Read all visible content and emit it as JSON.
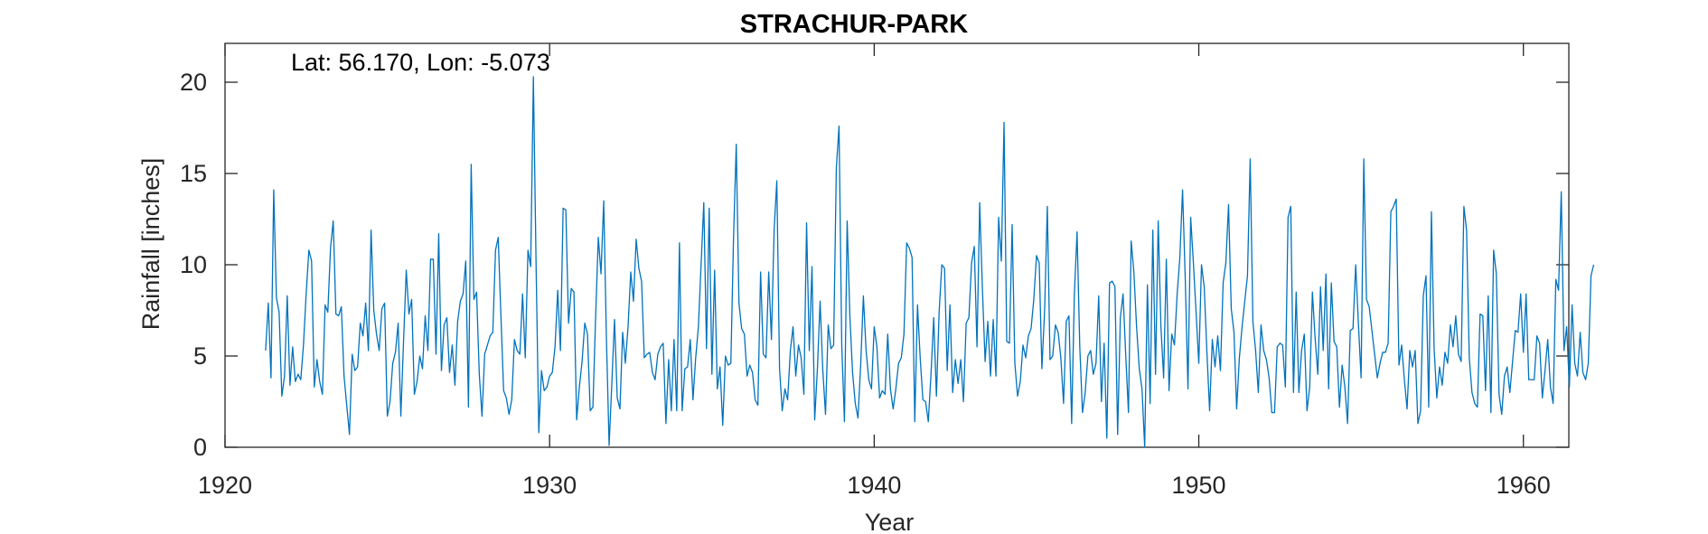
{
  "chart_data": {
    "type": "line",
    "title": "STRACHUR-PARK",
    "annotation": "Lat: 56.170, Lon: -5.073",
    "xlabel": "Year",
    "ylabel": "Rainfall [inches]",
    "xlim": [
      1920,
      1961.4
    ],
    "ylim": [
      0,
      22.5
    ],
    "xticks": [
      1920,
      1930,
      1940,
      1950,
      1960
    ],
    "yticks": [
      0,
      5,
      10,
      15,
      20
    ],
    "grid": false,
    "line_color": "#0072BD",
    "series": [
      {
        "start_year": 1921.25,
        "step": 0.0833333,
        "values": [
          5.3,
          7.9,
          3.8,
          14.1,
          8.2,
          7.4,
          2.8,
          3.9,
          8.3,
          3.4,
          5.5,
          3.6,
          4.0,
          3.7,
          5.6,
          8.4,
          10.8,
          10.2,
          3.3,
          4.8,
          3.6,
          2.9,
          7.8,
          7.4,
          10.9,
          12.4,
          7.3,
          7.2,
          7.7,
          3.9,
          2.3,
          0.7,
          5.1,
          4.2,
          4.4,
          6.8,
          6.1,
          7.9,
          5.3,
          11.9,
          7.5,
          6.2,
          5.3,
          7.6,
          7.9,
          1.7,
          2.5,
          4.6,
          5.2,
          6.8,
          1.7,
          5.8,
          9.7,
          7.3,
          8.1,
          2.9,
          3.6,
          5.0,
          4.3,
          7.2,
          5.3,
          10.3,
          10.3,
          5.1,
          11.7,
          4.2,
          6.7,
          7.1,
          4.1,
          5.6,
          3.4,
          6.9,
          8.0,
          8.4,
          10.2,
          2.2,
          15.5,
          8.1,
          8.5,
          4.0,
          1.7,
          5.1,
          5.6,
          6.1,
          6.3,
          10.8,
          11.5,
          7.2,
          3.1,
          2.7,
          1.8,
          2.6,
          5.9,
          5.3,
          5.1,
          8.4,
          4.9,
          10.8,
          9.9,
          20.3,
          10.0,
          0.8,
          4.2,
          3.1,
          3.3,
          3.9,
          4.1,
          5.5,
          8.6,
          5.3,
          13.1,
          13.0,
          6.8,
          8.7,
          8.5,
          1.5,
          3.3,
          4.7,
          6.8,
          6.2,
          2.0,
          2.2,
          7.1,
          11.5,
          9.5,
          13.5,
          6.0,
          0.1,
          3.5,
          7.0,
          2.7,
          2.1,
          6.3,
          4.6,
          6.6,
          9.6,
          8.0,
          11.4,
          9.8,
          9.1,
          4.9,
          5.1,
          5.2,
          4.1,
          3.7,
          5.1,
          5.5,
          5.7,
          1.3,
          4.8,
          2.0,
          5.9,
          2.0,
          11.2,
          2.0,
          4.3,
          4.4,
          5.9,
          2.6,
          4.9,
          6.6,
          10.0,
          13.4,
          5.4,
          13.1,
          4.0,
          9.7,
          3.2,
          4.4,
          1.2,
          5.0,
          4.5,
          4.6,
          11.5,
          16.6,
          7.9,
          6.5,
          6.2,
          3.9,
          4.5,
          4.1,
          2.6,
          2.3,
          9.6,
          5.1,
          4.9,
          9.6,
          5.9,
          11.9,
          14.6,
          4.3,
          2.0,
          3.2,
          2.6,
          5.3,
          6.6,
          3.9,
          5.6,
          4.9,
          2.9,
          12.3,
          5.3,
          9.9,
          1.5,
          4.3,
          8.0,
          4.2,
          1.8,
          6.7,
          5.4,
          5.6,
          15.3,
          17.6,
          5.6,
          1.4,
          12.4,
          7.2,
          4.1,
          2.4,
          1.6,
          4.5,
          8.3,
          5.3,
          3.7,
          3.2,
          6.6,
          5.5,
          2.7,
          3.1,
          2.9,
          6.2,
          3.2,
          2.1,
          3.2,
          4.6,
          4.9,
          6.2,
          11.2,
          10.9,
          10.4,
          1.4,
          7.8,
          4.9,
          2.6,
          2.5,
          1.4,
          4.0,
          7.1,
          2.8,
          7.4,
          10.0,
          9.8,
          4.2,
          7.8,
          3.0,
          4.8,
          3.5,
          4.8,
          2.5,
          6.8,
          7.1,
          10.1,
          11.0,
          5.5,
          13.4,
          8.7,
          4.7,
          6.9,
          3.9,
          7.0,
          3.9,
          12.6,
          10.2,
          17.8,
          5.8,
          5.7,
          12.2,
          4.6,
          2.8,
          3.6,
          5.6,
          4.9,
          6.1,
          6.5,
          8.1,
          10.5,
          10.1,
          4.3,
          7.5,
          13.2,
          4.8,
          5.0,
          6.7,
          6.3,
          4.9,
          2.4,
          6.9,
          7.2,
          1.3,
          8.4,
          11.8,
          5.5,
          1.9,
          3.0,
          5.0,
          5.3,
          4.0,
          4.6,
          8.3,
          2.5,
          5.7,
          0.5,
          9.0,
          9.1,
          8.8,
          0.7,
          7.1,
          8.4,
          5.0,
          1.9,
          11.3,
          9.6,
          6.6,
          4.3,
          3.2,
          0.0,
          8.9,
          2.4,
          11.9,
          4.0,
          12.4,
          6.6,
          3.8,
          10.3,
          3.1,
          6.2,
          5.6,
          8.4,
          10.4,
          14.1,
          9.2,
          3.2,
          12.6,
          10.1,
          7.4,
          4.6,
          10.0,
          8.8,
          5.2,
          2.0,
          5.9,
          4.4,
          6.1,
          4.2,
          9.0,
          10.1,
          13.3,
          7.6,
          6.3,
          2.1,
          4.9,
          6.6,
          8.0,
          9.4,
          15.8,
          6.9,
          5.3,
          3.0,
          6.7,
          5.3,
          4.8,
          3.8,
          1.9,
          1.9,
          5.5,
          5.7,
          5.6,
          3.3,
          12.6,
          13.2,
          3.0,
          8.5,
          3.0,
          5.3,
          6.2,
          2.0,
          3.3,
          8.5,
          6.0,
          4.0,
          8.8,
          5.3,
          9.5,
          3.2,
          9.0,
          5.8,
          5.5,
          2.2,
          4.5,
          3.3,
          1.3,
          6.4,
          6.5,
          10.0,
          6.8,
          3.8,
          15.8,
          8.1,
          7.7,
          6.4,
          5.1,
          3.8,
          4.6,
          5.2,
          5.2,
          5.7,
          12.9,
          13.2,
          13.6,
          4.5,
          5.6,
          3.7,
          2.1,
          5.3,
          4.4,
          5.3,
          1.3,
          2.0,
          8.3,
          9.4,
          2.2,
          12.9,
          5.4,
          2.7,
          4.4,
          3.4,
          5.2,
          4.6,
          6.7,
          5.5,
          7.2,
          5.1,
          4.7,
          13.2,
          11.9,
          4.9,
          3.0,
          2.4,
          2.2,
          7.3,
          7.2,
          3.1,
          8.3,
          1.9,
          10.8,
          9.5,
          2.9,
          1.8,
          3.9,
          4.4,
          3.0,
          4.7,
          6.4,
          6.3,
          8.4,
          5.2,
          8.4,
          3.7,
          3.7,
          3.7,
          6.1,
          5.7,
          2.7,
          4.2,
          5.9,
          3.3,
          2.4,
          9.2,
          8.6,
          14.0,
          5.3,
          6.6,
          3.3,
          7.8,
          4.6,
          3.9,
          6.3,
          4.1,
          3.7,
          4.6,
          9.4,
          10.0
        ]
      }
    ]
  }
}
